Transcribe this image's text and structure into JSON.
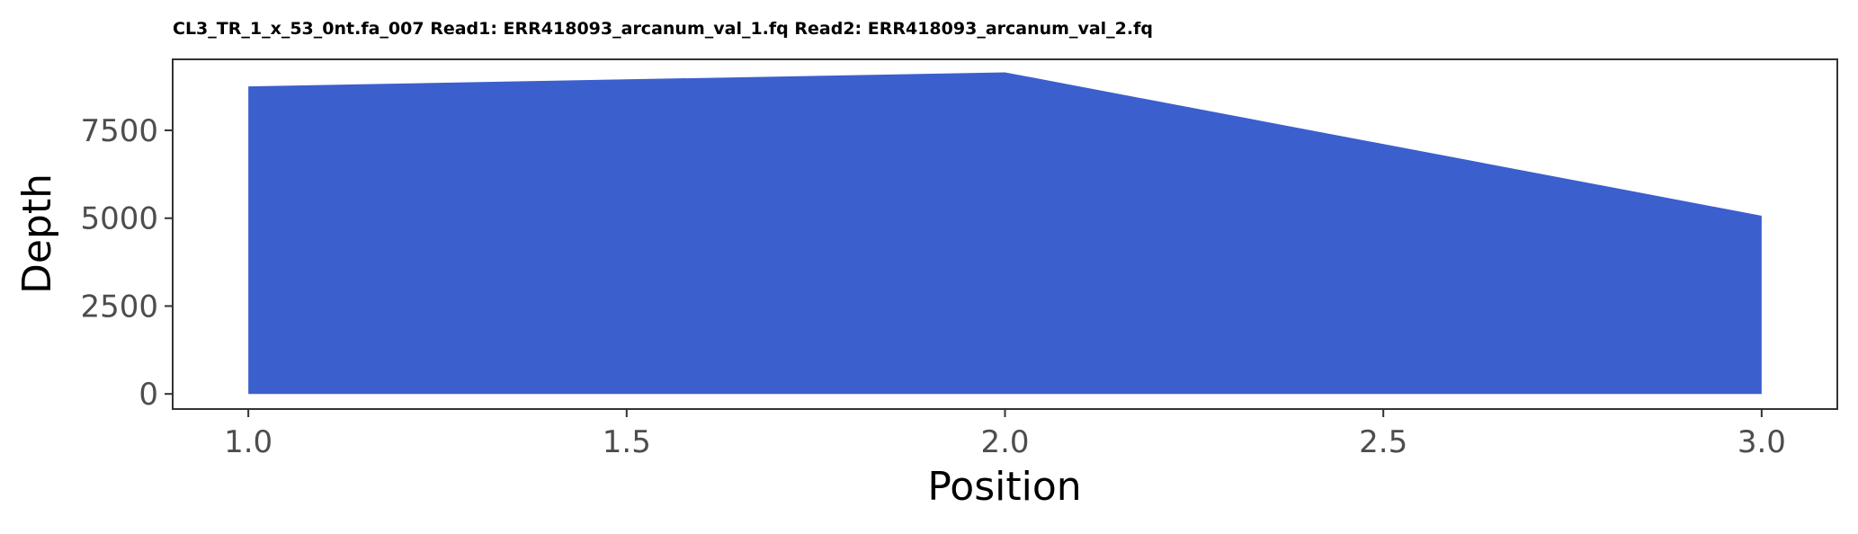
{
  "chart_data": {
    "type": "area",
    "title": "CL3_TR_1_x_53_0nt.fa_007 Read1: ERR418093_arcanum_val_1.fq Read2: ERR418093_arcanum_val_2.fq",
    "xlabel": "Position",
    "ylabel": "Depth",
    "x": [
      1.0,
      2.0,
      3.0
    ],
    "series": [
      {
        "values": [
          8750,
          9150,
          5070
        ]
      }
    ],
    "xlim": [
      0.9,
      3.1
    ],
    "ylim": [
      -430,
      9520
    ],
    "xticks": [
      1.0,
      1.5,
      2.0,
      2.5,
      3.0
    ],
    "xtick_labels": [
      "1.0",
      "1.5",
      "2.0",
      "2.5",
      "3.0"
    ],
    "yticks": [
      0,
      2500,
      5000,
      7500
    ],
    "ytick_labels": [
      "0",
      "2500",
      "5000",
      "7500"
    ],
    "fill_color": "#3b5fcd",
    "grid": false,
    "legend": "none"
  }
}
